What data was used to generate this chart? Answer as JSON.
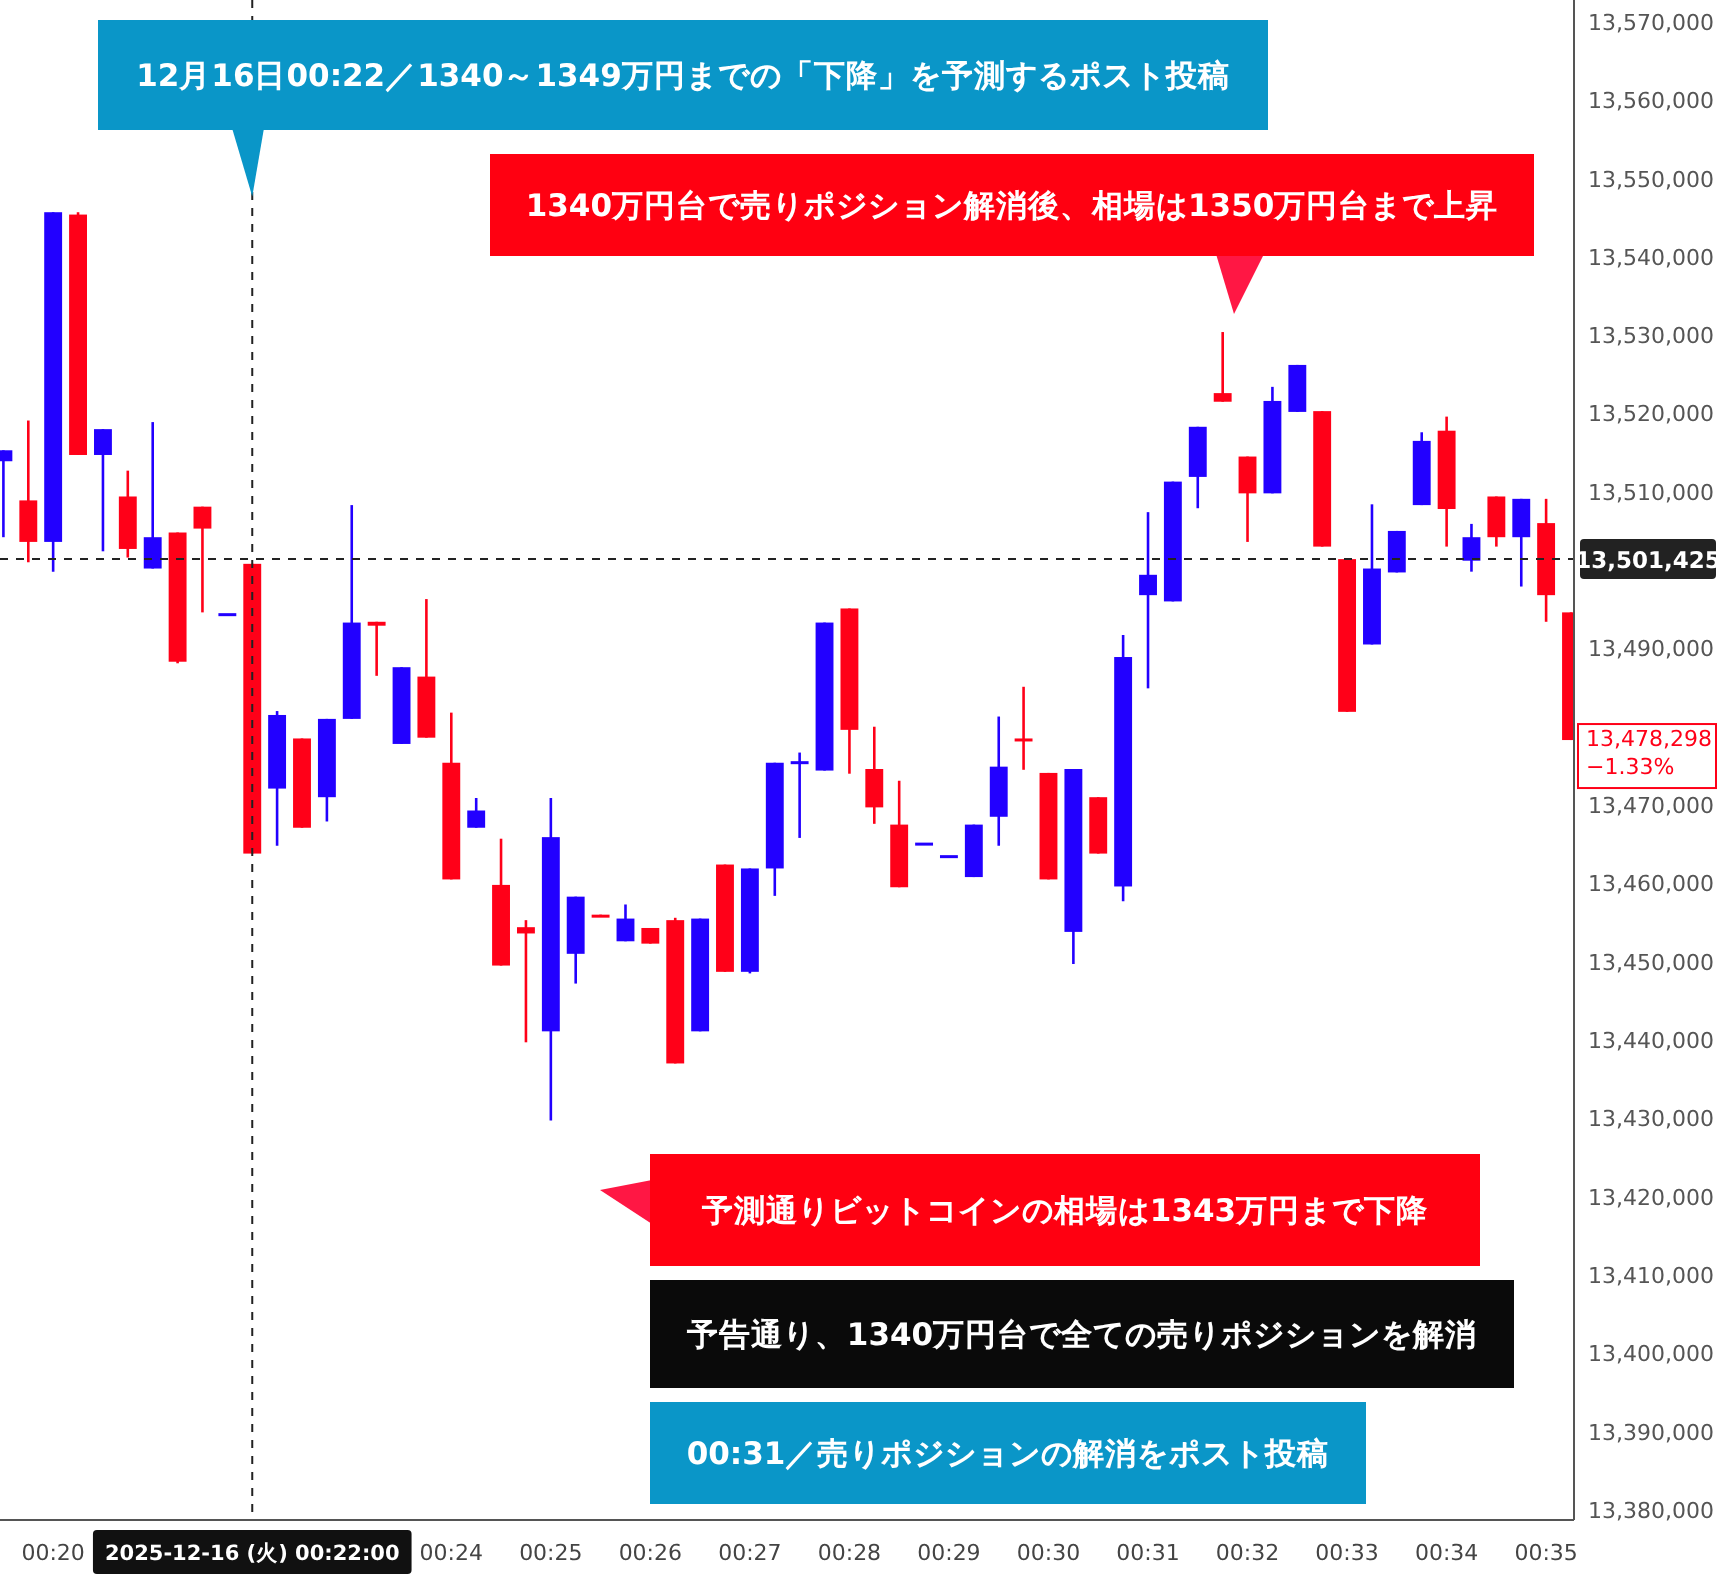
{
  "chart_data": {
    "type": "candlestick",
    "x": [
      0.325,
      0.32917,
      0.33333,
      0.3375,
      0.34167,
      0.34583,
      0.35,
      0.35417,
      0.35833,
      0.3625,
      0.36667,
      0.37083,
      0.375,
      0.37917,
      0.38333,
      0.3875,
      0.39167,
      0.39583,
      0.4,
      0.40417,
      0.40833,
      0.4125,
      0.41667,
      0.42083,
      0.425,
      0.42917,
      0.43333,
      0.4375,
      0.44167,
      0.44583,
      0.45,
      0.45417,
      0.45833,
      0.4625,
      0.46667,
      0.47083,
      0.475,
      0.47917,
      0.48333,
      0.4875,
      0.49167,
      0.49583,
      0.5,
      0.50417,
      0.50833,
      0.5125,
      0.51667,
      0.52083,
      0.525,
      0.52917,
      0.53333,
      0.5375,
      0.54167,
      0.54583,
      0.55,
      0.55417,
      0.55833,
      0.5625,
      0.56667,
      0.57083,
      0.575,
      0.57917,
      0.58333,
      0.5875
    ],
    "ohlc": [
      [
        13513900,
        13515300,
        13504200,
        13515300
      ],
      [
        13508900,
        13519100,
        13501000,
        13503600
      ],
      [
        13503600,
        13545700,
        13499800,
        13545700
      ],
      [
        13545400,
        13545700,
        13514700,
        13514700
      ],
      [
        13514700,
        13518000,
        13502400,
        13518000
      ],
      [
        13509400,
        13512700,
        13501600,
        13502700
      ],
      [
        13500200,
        13518900,
        13500200,
        13504200
      ],
      [
        13504800,
        13504800,
        13488100,
        13488300
      ],
      [
        13508100,
        13508100,
        13494600,
        13505300
      ],
      [
        13494500,
        13494500,
        13494500,
        13494500
      ],
      [
        13500800,
        13500800,
        13463800,
        13463800
      ],
      [
        13472100,
        13482000,
        13464800,
        13481500
      ],
      [
        13478500,
        13478500,
        13467100,
        13467100
      ],
      [
        13471000,
        13481000,
        13467900,
        13481000
      ],
      [
        13481000,
        13508300,
        13481000,
        13493300
      ],
      [
        13493400,
        13493400,
        13486500,
        13492900
      ],
      [
        13477800,
        13487600,
        13477800,
        13487600
      ],
      [
        13486400,
        13496300,
        13478600,
        13478600
      ],
      [
        13475400,
        13481800,
        13460500,
        13460500
      ],
      [
        13467100,
        13470900,
        13467100,
        13469300
      ],
      [
        13459800,
        13465700,
        13449500,
        13449500
      ],
      [
        13454400,
        13455300,
        13439700,
        13453600
      ],
      [
        13441100,
        13470900,
        13429700,
        13465900
      ],
      [
        13451000,
        13458300,
        13447200,
        13458300
      ],
      [
        13456000,
        13456000,
        13455900,
        13455900
      ],
      [
        13452600,
        13457300,
        13452600,
        13455500
      ],
      [
        13454300,
        13454300,
        13452300,
        13452300
      ],
      [
        13455300,
        13455600,
        13437000,
        13437000
      ],
      [
        13441100,
        13455500,
        13441100,
        13455500
      ],
      [
        13462400,
        13462400,
        13448700,
        13448700
      ],
      [
        13448700,
        13461900,
        13448500,
        13461900
      ],
      [
        13461900,
        13475400,
        13458400,
        13475400
      ],
      [
        13475500,
        13476700,
        13465800,
        13475600
      ],
      [
        13474400,
        13493300,
        13474400,
        13493300
      ],
      [
        13495100,
        13495100,
        13474000,
        13479600
      ],
      [
        13474600,
        13480000,
        13467600,
        13469700
      ],
      [
        13467500,
        13473100,
        13459500,
        13459500
      ],
      [
        13465200,
        13465200,
        13465200,
        13465200
      ],
      [
        13463600,
        13463600,
        13463600,
        13463600
      ],
      [
        13460800,
        13467500,
        13460800,
        13467500
      ],
      [
        13468500,
        13481300,
        13464800,
        13474900
      ],
      [
        13478500,
        13485100,
        13474500,
        13478400
      ],
      [
        13474100,
        13474100,
        13460500,
        13460500
      ],
      [
        13453800,
        13474600,
        13449700,
        13474600
      ],
      [
        13471000,
        13471000,
        13463800,
        13463800
      ],
      [
        13459600,
        13491700,
        13457700,
        13488900
      ],
      [
        13496800,
        13507400,
        13484900,
        13499400
      ],
      [
        13496000,
        13511300,
        13496000,
        13511300
      ],
      [
        13511900,
        13518300,
        13507900,
        13518300
      ],
      [
        13522600,
        13530400,
        13521500,
        13521500
      ],
      [
        13514500,
        13514500,
        13503600,
        13509800
      ],
      [
        13509800,
        13523400,
        13509800,
        13521600
      ],
      [
        13520200,
        13526200,
        13520200,
        13526200
      ],
      [
        13520300,
        13520300,
        13503000,
        13503000
      ],
      [
        13501400,
        13501400,
        13481900,
        13481900
      ],
      [
        13490500,
        13508400,
        13490500,
        13500200
      ],
      [
        13499700,
        13505000,
        13499700,
        13505000
      ],
      [
        13508300,
        13517600,
        13508300,
        13516500
      ],
      [
        13517800,
        13519600,
        13503000,
        13507800
      ],
      [
        13501200,
        13505900,
        13499800,
        13504200
      ],
      [
        13509400,
        13509400,
        13503000,
        13504200
      ],
      [
        13504200,
        13509100,
        13497900,
        13509100
      ],
      [
        13506000,
        13509100,
        13493400,
        13496800
      ],
      [
        13494600,
        13494600,
        13478298,
        13478298
      ]
    ],
    "colors": [
      "#2200ff",
      "#ff0018",
      "#2200ff",
      "#ff0018",
      "#2200ff",
      "#ff0018",
      "#2200ff",
      "#ff0018",
      "#ff0018",
      "#2200ff",
      "#ff0018",
      "#2200ff",
      "#ff0018",
      "#2200ff",
      "#2200ff",
      "#ff0018",
      "#2200ff",
      "#ff0018",
      "#ff0018",
      "#2200ff",
      "#ff0018",
      "#ff0018",
      "#2200ff",
      "#2200ff",
      "#ff0018",
      "#2200ff",
      "#ff0018",
      "#ff0018",
      "#2200ff",
      "#ff0018",
      "#2200ff",
      "#2200ff",
      "#2200ff",
      "#2200ff",
      "#ff0018",
      "#ff0018",
      "#ff0018",
      "#2200ff",
      "#2200ff",
      "#2200ff",
      "#2200ff",
      "#ff0018",
      "#ff0018",
      "#2200ff",
      "#ff0018",
      "#2200ff",
      "#2200ff",
      "#2200ff",
      "#2200ff",
      "#ff0018",
      "#ff0018",
      "#2200ff",
      "#2200ff",
      "#ff0018",
      "#ff0018",
      "#2200ff",
      "#2200ff",
      "#2200ff",
      "#ff0018",
      "#2200ff",
      "#ff0018",
      "#2200ff",
      "#ff0018",
      "#ff0018"
    ],
    "xlim": [
      0.32443,
      0.588
    ],
    "ylim": [
      13378700,
      13572800
    ],
    "xticks": [
      {
        "value": 0.33333,
        "label": "00:20"
      },
      {
        "value": 0.36667,
        "label": "2025-12-16 (火)   00:22:00"
      },
      {
        "value": 0.4,
        "label": "00:24"
      },
      {
        "value": 0.41667,
        "label": "00:25"
      },
      {
        "value": 0.43333,
        "label": "00:26"
      },
      {
        "value": 0.45,
        "label": "00:27"
      },
      {
        "value": 0.46667,
        "label": "00:28"
      },
      {
        "value": 0.48333,
        "label": "00:29"
      },
      {
        "value": 0.5,
        "label": "00:30"
      },
      {
        "value": 0.51667,
        "label": "00:31"
      },
      {
        "value": 0.53333,
        "label": "00:32"
      },
      {
        "value": 0.55,
        "label": "00:33"
      },
      {
        "value": 0.56667,
        "label": "00:34"
      },
      {
        "value": 0.58333,
        "label": "00:35"
      }
    ],
    "yticks": [
      {
        "value": 13380000,
        "label": "13,380,000"
      },
      {
        "value": 13390000,
        "label": "13,390,000"
      },
      {
        "value": 13400000,
        "label": "13,400,000"
      },
      {
        "value": 13410000,
        "label": "13,410,000"
      },
      {
        "value": 13420000,
        "label": "13,420,000"
      },
      {
        "value": 13430000,
        "label": "13,430,000"
      },
      {
        "value": 13440000,
        "label": "13,440,000"
      },
      {
        "value": 13450000,
        "label": "13,450,000"
      },
      {
        "value": 13460000,
        "label": "13,460,000"
      },
      {
        "value": 13470000,
        "label": "13,470,000"
      },
      {
        "value": 13490000,
        "label": "13,490,000"
      },
      {
        "value": 13510000,
        "label": "13,510,000"
      },
      {
        "value": 13520000,
        "label": "13,520,000"
      },
      {
        "value": 13530000,
        "label": "13,530,000"
      },
      {
        "value": 13540000,
        "label": "13,540,000"
      },
      {
        "value": 13550000,
        "label": "13,550,000"
      },
      {
        "value": 13560000,
        "label": "13,560,000"
      },
      {
        "value": 13570000,
        "label": "13,570,000"
      }
    ],
    "ref_lines": [
      {
        "axis": "x",
        "value": 0.36667,
        "label": null,
        "line_style": "dashed",
        "color": "#222222"
      },
      {
        "axis": "y",
        "value": 13501425,
        "label": "13,501,425",
        "line_style": "dashed",
        "color": "#222222"
      }
    ],
    "annotations": [
      {
        "text": "12月16日00:22／1340～1349万円までの「下降」を予測するポスト投稿",
        "x": 0.36667,
        "y": 13547700
      },
      "1340万円台で売りポジション解消後、相場は1350万円台まで上昇",
      "予測通りビットコインの相場は1343万円まで下降",
      "予告通り、1340万円台で全ての売りポジションを解消",
      "00:31／売りポジションの解消をポスト投稿",
      {
        "text": "13,478,298\n−1.33%",
        "x": 0.5875,
        "y": 13478298
      }
    ]
  }
}
